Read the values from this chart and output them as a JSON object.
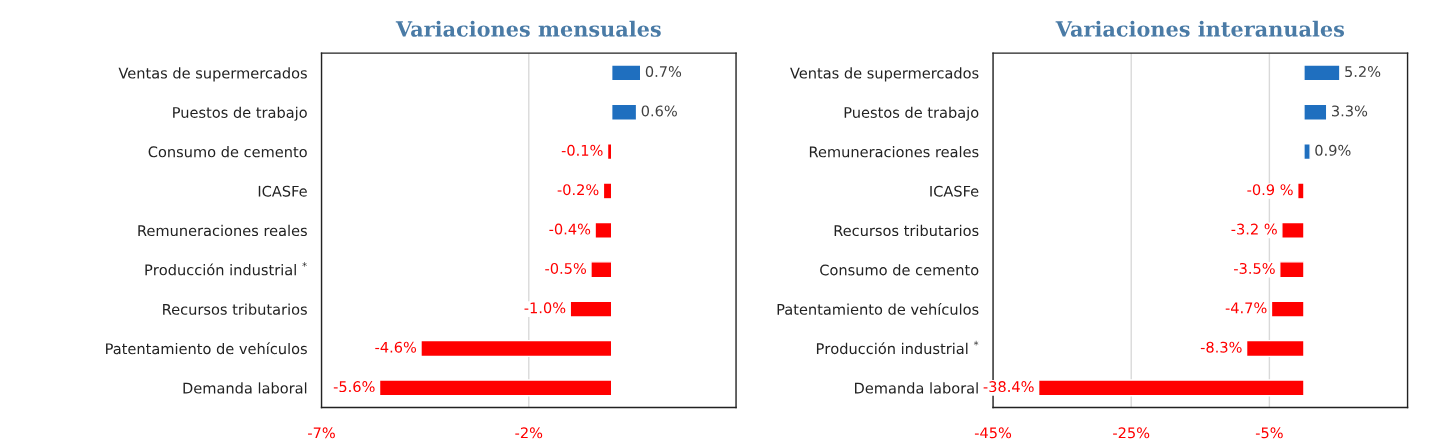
{
  "chart_data": [
    {
      "type": "bar",
      "orientation": "horizontal",
      "title": "Variaciones mensuales",
      "categories": [
        "Ventas de supermercados",
        "Puestos de trabajo",
        "Consumo de cemento",
        "ICASFe",
        "Remuneraciones reales",
        "Producción industrial $^{*}$",
        "Recursos tributarios",
        "Patentamiento de vehículos",
        "Demanda laboral"
      ],
      "values": [
        0.7,
        0.6,
        -0.1,
        -0.2,
        -0.4,
        -0.5,
        -1.0,
        -4.6,
        -5.6
      ],
      "colors": [
        "#1f6fbf",
        "#1f6fbf",
        "#ff0000",
        "#ff0000",
        "#ff0000",
        "#ff0000",
        "#ff0000",
        "#ff0000",
        "#ff0000"
      ],
      "value_labels": [
        "0.7%",
        "0.6%",
        "-0.1%",
        "-0.2%",
        "-0.4%",
        "-0.5%",
        "-1.0%",
        "-4.6%",
        "-5.6%"
      ],
      "xlim": [
        -7,
        3
      ],
      "xticks": [
        {
          "value": -7,
          "label": "-7%"
        },
        {
          "value": -2,
          "label": "-2%"
        }
      ],
      "grid": "x"
    },
    {
      "type": "bar",
      "orientation": "horizontal",
      "title": "Variaciones interanuales",
      "categories": [
        "Ventas de supermercados",
        "Puestos de trabajo",
        "Remuneraciones reales",
        "ICASFe",
        "Recursos tributarios",
        "Consumo de cemento",
        "Patentamiento de vehículos",
        "Producción industrial $^{*}$",
        "Demanda laboral"
      ],
      "values": [
        5.2,
        3.3,
        0.9,
        -0.9,
        -3.2,
        -3.5,
        -4.7,
        -8.3,
        -38.4
      ],
      "colors": [
        "#1f6fbf",
        "#1f6fbf",
        "#1f6fbf",
        "#ff0000",
        "#ff0000",
        "#ff0000",
        "#ff0000",
        "#ff0000",
        "#ff0000"
      ],
      "value_labels": [
        "5.2%",
        "3.3%",
        "0.9%",
        "-0.9 %",
        "-3.2 %",
        "-3.5%",
        "-4.7%",
        "-8.3%",
        "-38.4%"
      ],
      "xlim": [
        -45,
        15
      ],
      "xticks": [
        {
          "value": -45,
          "label": "-45%"
        },
        {
          "value": -25,
          "label": "-25%"
        },
        {
          "value": -5,
          "label": "-5%"
        }
      ],
      "grid": "x"
    }
  ]
}
